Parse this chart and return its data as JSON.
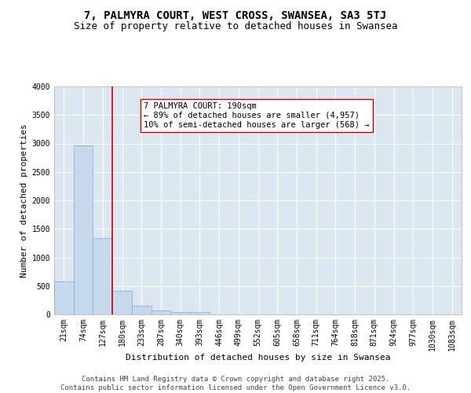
{
  "title": "7, PALMYRA COURT, WEST CROSS, SWANSEA, SA3 5TJ",
  "subtitle": "Size of property relative to detached houses in Swansea",
  "xlabel": "Distribution of detached houses by size in Swansea",
  "ylabel": "Number of detached properties",
  "bar_values": [
    580,
    2970,
    1340,
    420,
    150,
    70,
    45,
    35,
    0,
    0,
    0,
    0,
    0,
    0,
    0,
    0,
    0,
    0,
    0,
    0,
    0
  ],
  "bar_labels": [
    "21sqm",
    "74sqm",
    "127sqm",
    "180sqm",
    "233sqm",
    "287sqm",
    "340sqm",
    "393sqm",
    "446sqm",
    "499sqm",
    "552sqm",
    "605sqm",
    "658sqm",
    "711sqm",
    "764sqm",
    "818sqm",
    "871sqm",
    "924sqm",
    "977sqm",
    "1030sqm",
    "1083sqm"
  ],
  "bar_color": "#c5d8ec",
  "bar_edgecolor": "#7aafd4",
  "vline_color": "#cc0000",
  "annotation_text": "7 PALMYRA COURT: 190sqm\n← 89% of detached houses are smaller (4,957)\n10% of semi-detached houses are larger (568) →",
  "annotation_box_color": "#cc0000",
  "ylim": [
    0,
    4000
  ],
  "yticks": [
    0,
    500,
    1000,
    1500,
    2000,
    2500,
    3000,
    3500,
    4000
  ],
  "background_color": "#dce6f0",
  "grid_color": "#ffffff",
  "fig_background": "#ffffff",
  "footer": "Contains HM Land Registry data © Crown copyright and database right 2025.\nContains public sector information licensed under the Open Government Licence v3.0.",
  "title_fontsize": 10,
  "subtitle_fontsize": 9,
  "xlabel_fontsize": 8,
  "ylabel_fontsize": 8,
  "tick_fontsize": 7,
  "annotation_fontsize": 7.5,
  "footer_fontsize": 6.5
}
